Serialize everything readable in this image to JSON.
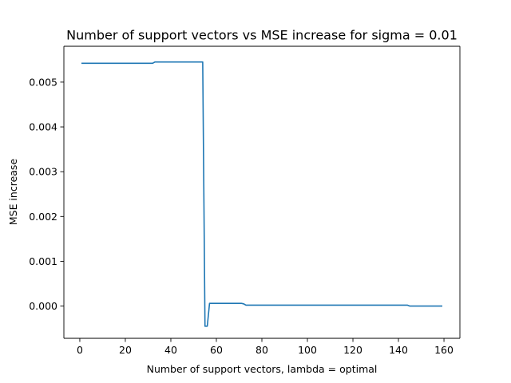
{
  "chart_data": {
    "type": "line",
    "title": "Number of support vectors vs MSE increase for sigma = 0.01",
    "xlabel": "Number of support vectors, lambda = optimal",
    "ylabel": "MSE increase",
    "xlim": [
      -7,
      167
    ],
    "ylim": [
      -0.00072,
      0.0058
    ],
    "xticks": [
      0,
      20,
      40,
      60,
      80,
      100,
      120,
      140,
      160
    ],
    "xtick_labels": [
      "0",
      "20",
      "40",
      "60",
      "80",
      "100",
      "120",
      "140",
      "160"
    ],
    "yticks": [
      0.0,
      0.001,
      0.002,
      0.003,
      0.004,
      0.005
    ],
    "ytick_labels": [
      "0.000",
      "0.001",
      "0.002",
      "0.003",
      "0.004",
      "0.005"
    ],
    "grid": false,
    "series": [
      {
        "color": "#1f77b4",
        "x": [
          1,
          32,
          33,
          54,
          55,
          56,
          57,
          71,
          72,
          73,
          144,
          145,
          159
        ],
        "y": [
          0.00542,
          0.00542,
          0.00545,
          0.00545,
          -0.00045,
          -0.00045,
          6e-05,
          6e-05,
          5e-05,
          2e-05,
          2e-05,
          0.0,
          0.0
        ]
      }
    ]
  }
}
